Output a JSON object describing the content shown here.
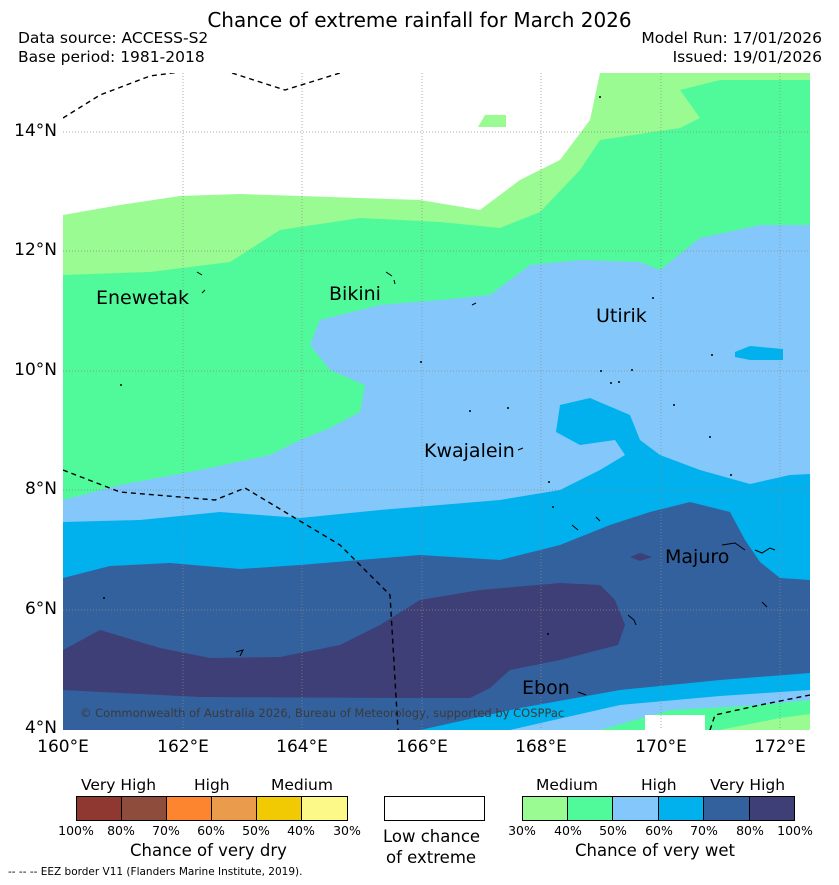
{
  "header": {
    "title": "Chance of extreme rainfall for March 2026",
    "data_source": "Data source: ACCESS-S2",
    "base_period": "Base period: 1981-2018",
    "model_run": "Model Run: 17/01/2026",
    "issued": "Issued: 19/01/2026"
  },
  "map": {
    "lat_ticks": [
      "14°N",
      "12°N",
      "10°N",
      "8°N",
      "6°N",
      "4°N"
    ],
    "lon_ticks": [
      "160°E",
      "162°E",
      "164°E",
      "166°E",
      "168°E",
      "170°E",
      "172°E"
    ],
    "places": {
      "enewetak": "Enewetak",
      "bikini": "Bikini",
      "utirik": "Utirik",
      "kwajalein": "Kwajalein",
      "majuro": "Majuro",
      "ebon": "Ebon"
    },
    "copyright": "© Commonwealth of Australia 2026, Bureau of Meteorology, supported by COSPPac",
    "colors": {
      "wet_30": "#99fb91",
      "wet_40": "#50fa9b",
      "wet_50": "#84c8fb",
      "wet_60": "#00b1ed",
      "wet_70": "#33619e",
      "wet_80": "#3e3f76"
    }
  },
  "legend": {
    "dry": {
      "labels": [
        "Very High",
        "High",
        "Medium"
      ],
      "ticks": [
        "100%",
        "80%",
        "70%",
        "60%",
        "50%",
        "40%",
        "30%"
      ],
      "colors": [
        "#8f3731",
        "#8e4c3c",
        "#fd8530",
        "#eb9b4c",
        "#f1ca04",
        "#fdf989"
      ],
      "title": "Chance of very dry"
    },
    "neutral": {
      "title_line1": "Low chance",
      "title_line2": "of extreme"
    },
    "wet": {
      "labels": [
        "Medium",
        "High",
        "Very High"
      ],
      "ticks": [
        "30%",
        "40%",
        "50%",
        "60%",
        "70%",
        "80%",
        "100%"
      ],
      "colors": [
        "#99fb91",
        "#50fa9b",
        "#84c8fb",
        "#00b1ed",
        "#33619e",
        "#3e3f76"
      ],
      "title": "Chance of very wet"
    }
  },
  "footnote": "--  --  -- EEZ border V11 (Flanders Marine Institute, 2019)."
}
